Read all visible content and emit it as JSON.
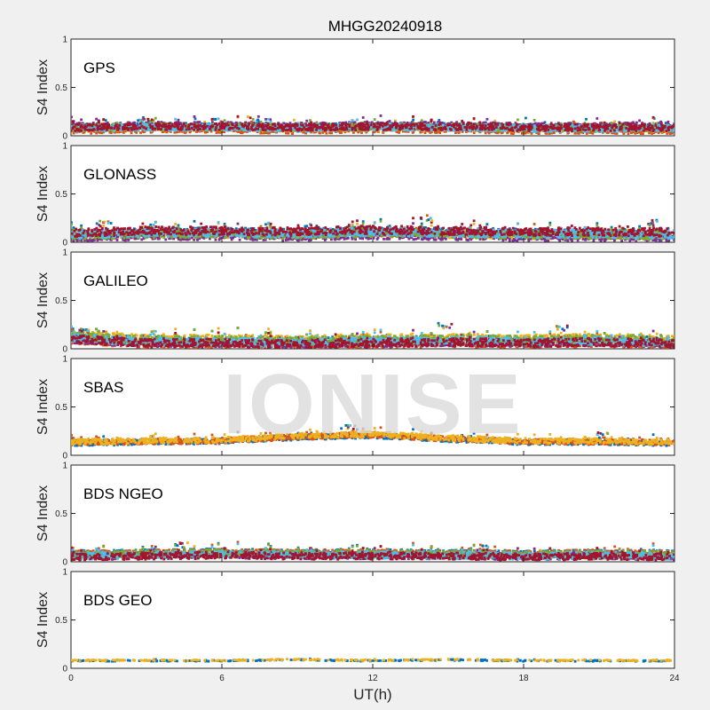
{
  "chart_data": {
    "type": "scatter",
    "title": "MHGG20240918",
    "xlabel": "UT(h)",
    "ylabel": "S4 Index",
    "xlim": [
      0,
      24
    ],
    "ylim": [
      0,
      1
    ],
    "xticks": [
      0,
      6,
      12,
      18,
      24
    ],
    "yticks": [
      0,
      0.5,
      1
    ],
    "ytick_labels": [
      "0",
      "0.5",
      "1"
    ],
    "grid": false,
    "watermark": "IONISE",
    "series_colors": [
      "#0072BD",
      "#D95319",
      "#EDB120",
      "#7E2F8E",
      "#77AC30",
      "#4DBEEE",
      "#A2142F"
    ],
    "panels": [
      {
        "label": "GPS",
        "profile": {
          "x": [
            0,
            3,
            6,
            9,
            12,
            15,
            18,
            21,
            24
          ],
          "y": [
            0.08,
            0.09,
            0.09,
            0.08,
            0.09,
            0.09,
            0.08,
            0.08,
            0.08
          ]
        },
        "spread": 0.05,
        "peaks": [
          {
            "x": 2.9,
            "y": 0.2
          },
          {
            "x": 7.2,
            "y": 0.2
          }
        ]
      },
      {
        "label": "GLONASS",
        "profile": {
          "x": [
            0,
            3,
            6,
            9,
            12,
            15,
            18,
            21,
            24
          ],
          "y": [
            0.07,
            0.09,
            0.09,
            0.08,
            0.1,
            0.09,
            0.08,
            0.08,
            0.07
          ]
        },
        "spread": 0.06,
        "peaks": [
          {
            "x": 1.3,
            "y": 0.22
          },
          {
            "x": 14.2,
            "y": 0.28
          },
          {
            "x": 23.1,
            "y": 0.23
          }
        ]
      },
      {
        "label": "GALILEO",
        "profile": {
          "x": [
            0,
            3,
            6,
            9,
            12,
            15,
            18,
            21,
            24
          ],
          "y": [
            0.12,
            0.08,
            0.08,
            0.07,
            0.08,
            0.09,
            0.08,
            0.09,
            0.07
          ]
        },
        "spread": 0.06,
        "peaks": [
          {
            "x": 0.4,
            "y": 0.2
          },
          {
            "x": 14.9,
            "y": 0.27
          },
          {
            "x": 19.5,
            "y": 0.24
          }
        ]
      },
      {
        "label": "SBAS",
        "profile": {
          "x": [
            0,
            3,
            6,
            9,
            12,
            15,
            18,
            21,
            24
          ],
          "y": [
            0.12,
            0.13,
            0.14,
            0.18,
            0.2,
            0.16,
            0.13,
            0.13,
            0.12
          ]
        },
        "spread": 0.04,
        "peaks": [
          {
            "x": 11,
            "y": 0.32
          },
          {
            "x": 21.2,
            "y": 0.24
          }
        ]
      },
      {
        "label": "BDS NGEO",
        "profile": {
          "x": [
            0,
            3,
            6,
            9,
            12,
            15,
            18,
            21,
            24
          ],
          "y": [
            0.07,
            0.08,
            0.09,
            0.08,
            0.08,
            0.08,
            0.07,
            0.08,
            0.07
          ]
        },
        "spread": 0.05,
        "peaks": [
          {
            "x": 4.4,
            "y": 0.2
          },
          {
            "x": 16.4,
            "y": 0.18
          }
        ]
      },
      {
        "label": "BDS GEO",
        "profile": {
          "x": [
            0,
            3,
            6,
            9,
            12,
            15,
            18,
            21,
            24
          ],
          "y": [
            0.08,
            0.08,
            0.08,
            0.09,
            0.08,
            0.09,
            0.08,
            0.08,
            0.08
          ]
        },
        "spread": 0.008,
        "peaks": []
      }
    ]
  }
}
